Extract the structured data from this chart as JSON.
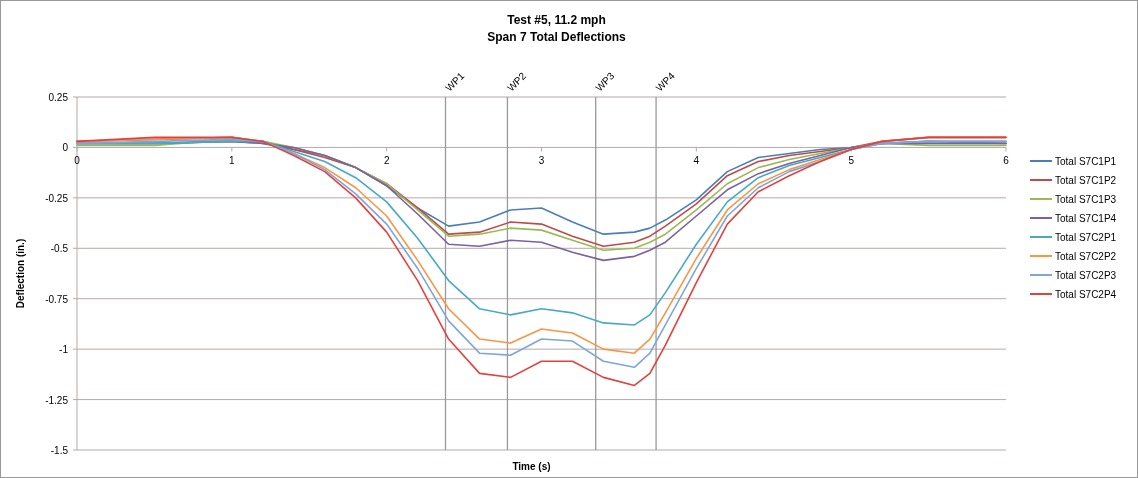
{
  "chart_data": {
    "type": "line",
    "title": "Test #5, 11.2 mph",
    "subtitle": "Span 7 Total Deflections",
    "xlabel": "Time (s)",
    "ylabel": "Deflection (in.)",
    "x": [
      0,
      0.5,
      1,
      1.2,
      1.4,
      1.6,
      1.8,
      2,
      2.2,
      2.4,
      2.6,
      2.8,
      3,
      3.2,
      3.4,
      3.6,
      3.7,
      3.8,
      4,
      4.2,
      4.4,
      4.6,
      4.8,
      5,
      5.2,
      5.5,
      6
    ],
    "series": [
      {
        "name": "Total S7C1P1",
        "color": "#4a7ebb",
        "values": [
          0.02,
          0.02,
          0.03,
          0.02,
          -0.01,
          -0.04,
          -0.1,
          -0.19,
          -0.3,
          -0.39,
          -0.37,
          -0.31,
          -0.3,
          -0.37,
          -0.43,
          -0.42,
          -0.4,
          -0.36,
          -0.26,
          -0.12,
          -0.05,
          -0.03,
          -0.01,
          0,
          0.02,
          0.03,
          0.02
        ]
      },
      {
        "name": "Total S7C1P2",
        "color": "#be4b48",
        "values": [
          0.03,
          0.04,
          0.05,
          0.03,
          -0.01,
          -0.05,
          -0.1,
          -0.18,
          -0.3,
          -0.43,
          -0.42,
          -0.37,
          -0.38,
          -0.44,
          -0.49,
          -0.47,
          -0.44,
          -0.39,
          -0.28,
          -0.14,
          -0.07,
          -0.04,
          -0.02,
          0,
          0.03,
          0.05,
          0.05
        ]
      },
      {
        "name": "Total S7C1P3",
        "color": "#98b954",
        "values": [
          0.01,
          0.01,
          0.04,
          0.03,
          0,
          -0.04,
          -0.1,
          -0.18,
          -0.31,
          -0.44,
          -0.43,
          -0.4,
          -0.41,
          -0.46,
          -0.51,
          -0.5,
          -0.47,
          -0.43,
          -0.31,
          -0.18,
          -0.1,
          -0.06,
          -0.03,
          0,
          0.02,
          0.01,
          0.01
        ]
      },
      {
        "name": "Total S7C1P4",
        "color": "#7d60a0",
        "values": [
          0.02,
          0.02,
          0.03,
          0.02,
          0,
          -0.04,
          -0.1,
          -0.19,
          -0.33,
          -0.48,
          -0.49,
          -0.46,
          -0.47,
          -0.52,
          -0.56,
          -0.54,
          -0.51,
          -0.47,
          -0.34,
          -0.21,
          -0.13,
          -0.08,
          -0.04,
          0,
          0.02,
          0.02,
          0.02
        ]
      },
      {
        "name": "Total S7C2P1",
        "color": "#46aac5",
        "values": [
          0.02,
          0.02,
          0.03,
          0.03,
          -0.02,
          -0.07,
          -0.15,
          -0.27,
          -0.45,
          -0.66,
          -0.8,
          -0.83,
          -0.8,
          -0.82,
          -0.87,
          -0.88,
          -0.83,
          -0.72,
          -0.48,
          -0.27,
          -0.15,
          -0.09,
          -0.05,
          -0.01,
          0.02,
          0.03,
          0.03
        ]
      },
      {
        "name": "Total S7C2P2",
        "color": "#f79646",
        "values": [
          0.03,
          0.04,
          0.05,
          0.03,
          -0.03,
          -0.1,
          -0.2,
          -0.34,
          -0.56,
          -0.8,
          -0.95,
          -0.97,
          -0.9,
          -0.92,
          -1,
          -1.02,
          -0.95,
          -0.82,
          -0.55,
          -0.31,
          -0.18,
          -0.11,
          -0.06,
          -0.01,
          0.03,
          0.05,
          0.05
        ]
      },
      {
        "name": "Total S7C2P3",
        "color": "#7ea6dc",
        "values": [
          0.02,
          0.03,
          0.04,
          0.03,
          -0.03,
          -0.11,
          -0.23,
          -0.38,
          -0.6,
          -0.86,
          -1.02,
          -1.03,
          -0.95,
          -0.96,
          -1.06,
          -1.09,
          -1.02,
          -0.88,
          -0.6,
          -0.34,
          -0.2,
          -0.12,
          -0.07,
          -0.01,
          0.02,
          0.03,
          0.03
        ]
      },
      {
        "name": "Total S7C2P4",
        "color": "#e0433f",
        "values": [
          0.03,
          0.05,
          0.05,
          0.03,
          -0.04,
          -0.12,
          -0.25,
          -0.42,
          -0.66,
          -0.95,
          -1.12,
          -1.14,
          -1.06,
          -1.06,
          -1.14,
          -1.18,
          -1.12,
          -0.98,
          -0.67,
          -0.38,
          -0.22,
          -0.14,
          -0.07,
          -0.01,
          0.03,
          0.05,
          0.05
        ]
      }
    ],
    "xlim": [
      0,
      6
    ],
    "xticks": [
      0,
      1,
      2,
      3,
      4,
      5,
      6
    ],
    "ylim": [
      -1.5,
      0.25
    ],
    "yticks": [
      -1.5,
      -1.25,
      -1,
      -0.75,
      -0.5,
      -0.25,
      0,
      0.25
    ],
    "ref_lines": [
      {
        "axis": "x",
        "value": 2.38,
        "label": "WP1"
      },
      {
        "axis": "x",
        "value": 2.78,
        "label": "WP2"
      },
      {
        "axis": "x",
        "value": 3.35,
        "label": "WP3"
      },
      {
        "axis": "x",
        "value": 3.74,
        "label": "WP4"
      }
    ],
    "grid": "y",
    "legend": "right",
    "marker": "none",
    "line_style": "solid"
  }
}
